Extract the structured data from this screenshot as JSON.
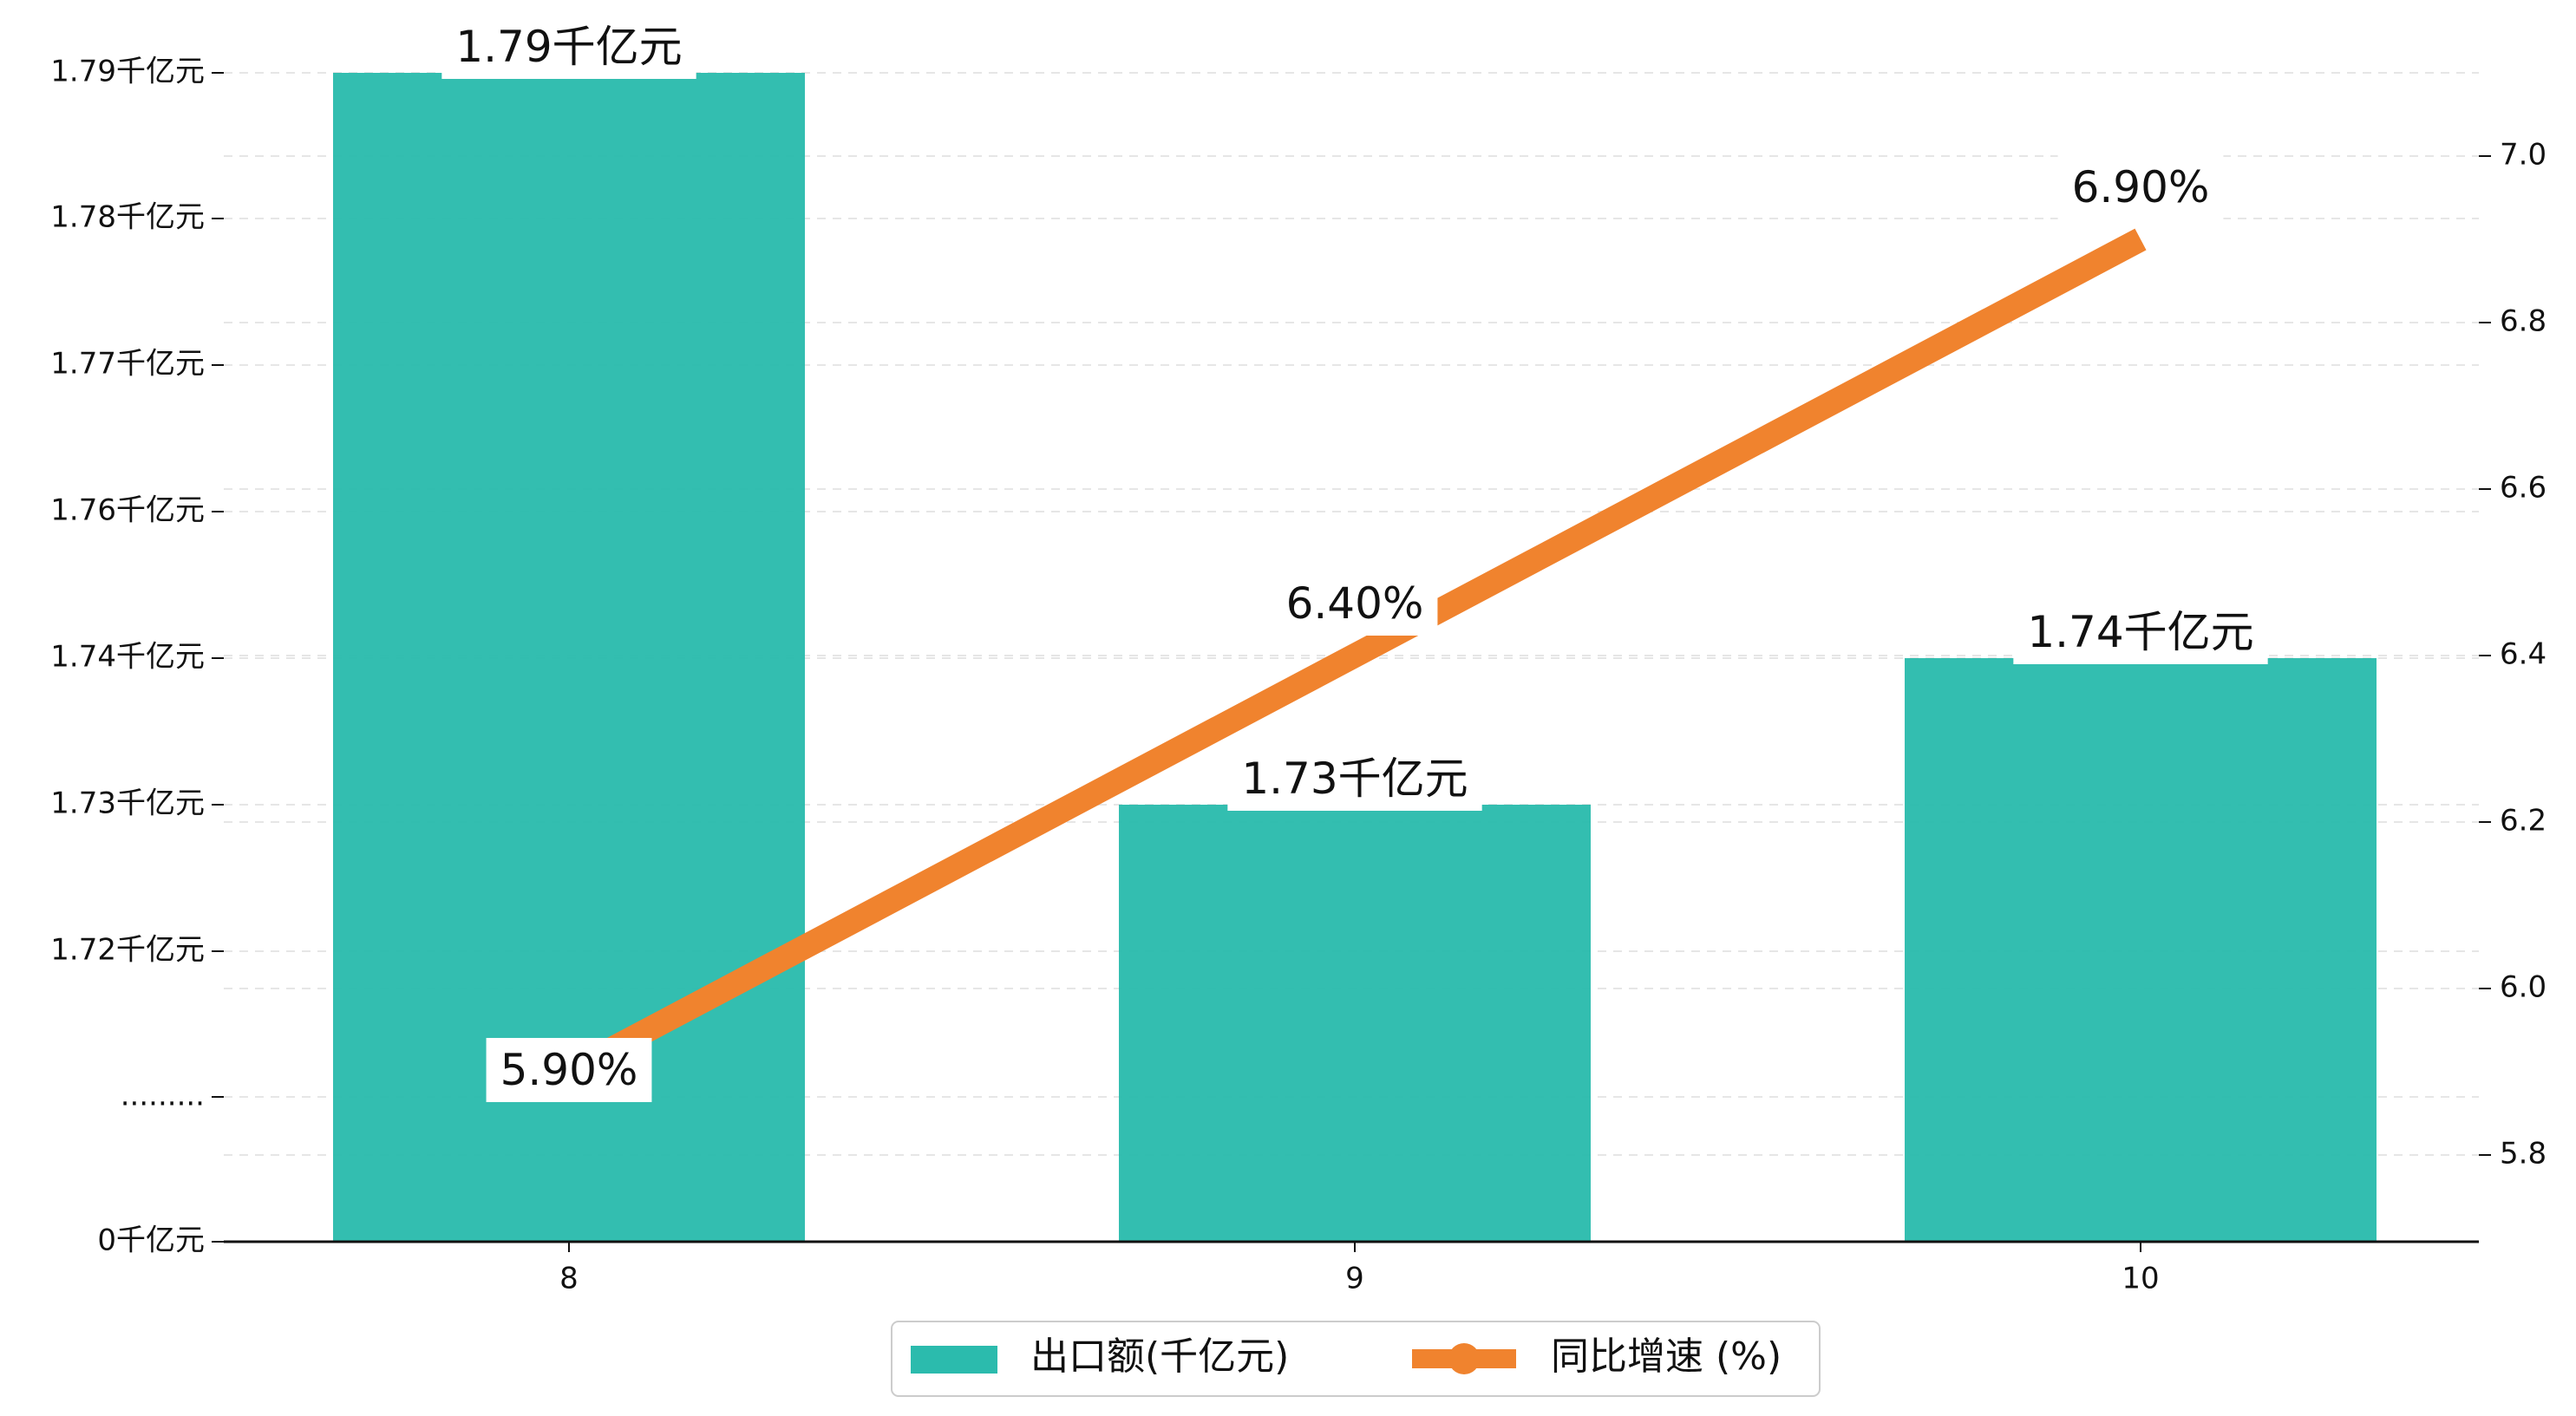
{
  "chart_data": {
    "type": "bar+line",
    "categories": [
      "8",
      "9",
      "10"
    ],
    "series": [
      {
        "name": "出口额(千亿元)",
        "type": "bar",
        "axis": "left",
        "values": [
          1.79,
          1.73,
          1.74
        ],
        "labels": [
          "1.79千亿元",
          "1.73千亿元",
          "1.74千亿元"
        ],
        "color": "#2bbbad"
      },
      {
        "name": "同比增速 (%)",
        "type": "line",
        "axis": "right",
        "values": [
          5.9,
          6.4,
          6.9
        ],
        "labels": [
          "5.90%",
          "6.40%",
          "6.90%"
        ],
        "color": "#f0832e"
      }
    ],
    "left_axis": {
      "broken": true,
      "ticks": [
        {
          "value": 1.79,
          "label": "1.79千亿元"
        },
        {
          "value": 1.78,
          "label": "1.78千亿元"
        },
        {
          "value": 1.77,
          "label": "1.77千亿元"
        },
        {
          "value": 1.76,
          "label": "1.76千亿元"
        },
        {
          "value": 1.74,
          "label": "1.74千亿元"
        },
        {
          "value": 1.73,
          "label": "1.73千亿元"
        },
        {
          "value": 1.72,
          "label": "1.72千亿元"
        },
        {
          "value": null,
          "label": "........."
        },
        {
          "value": 0,
          "label": "0千亿元"
        }
      ]
    },
    "right_axis": {
      "ticks": [
        "7.0",
        "6.8",
        "6.6",
        "6.4",
        "6.2",
        "6.0",
        "5.8"
      ],
      "ylim": [
        5.7,
        7.1
      ]
    },
    "grid": "horizontal-dashed",
    "legend_position": "bottom-center"
  }
}
